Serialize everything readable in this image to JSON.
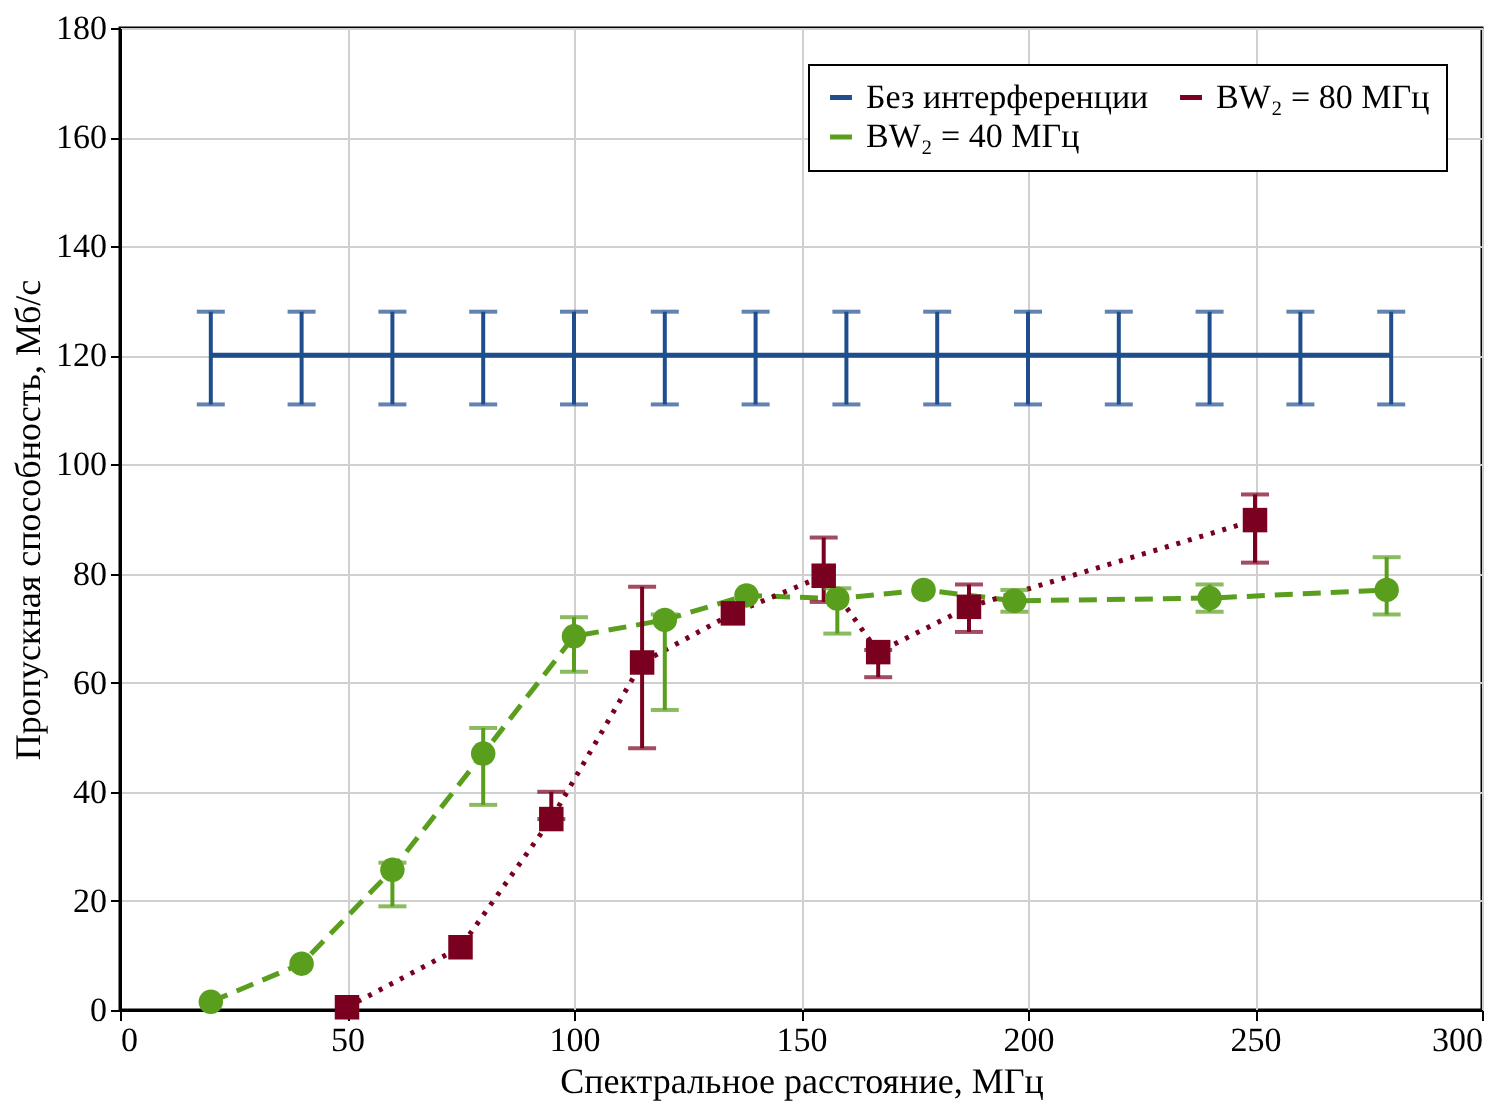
{
  "chart_data": {
    "type": "line",
    "xlabel": "Спектральное расстояние, МГц",
    "ylabel": "Пропускная способность, Мб/с",
    "xlim": [
      0,
      300
    ],
    "xticks": [
      0,
      50,
      100,
      150,
      200,
      250,
      300
    ],
    "ylim": [
      0,
      180
    ],
    "yticks": [
      0,
      20,
      40,
      60,
      80,
      100,
      120,
      140,
      160,
      180
    ],
    "grid": true,
    "legend": "top right",
    "series": [
      {
        "name": "Без интерференции",
        "color": "#1f4e8c",
        "marker": "none",
        "line_style": "solid",
        "x": [
          20,
          40,
          60,
          80,
          100,
          120,
          140,
          160,
          180,
          200,
          220,
          240,
          260,
          280
        ],
        "values": [
          120,
          120,
          120,
          120,
          120,
          120,
          120,
          120,
          120,
          120,
          120,
          120,
          120,
          120
        ],
        "errors": [
          [
            111,
            128
          ],
          [
            111,
            128
          ],
          [
            111,
            128
          ],
          [
            111,
            128
          ],
          [
            111,
            128
          ],
          [
            111,
            128
          ],
          [
            111,
            128
          ],
          [
            111,
            128
          ],
          [
            111,
            128
          ],
          [
            111,
            128
          ],
          [
            111,
            128
          ],
          [
            111,
            128
          ],
          [
            111,
            128
          ],
          [
            111,
            128
          ]
        ]
      },
      {
        "name": "BW₂ = 40 МГц",
        "color": "#5a9e1e",
        "marker": "circle",
        "line_style": "dashed",
        "x": [
          20,
          40,
          60,
          80,
          100,
          120,
          138,
          158,
          177,
          197,
          240,
          279
        ],
        "values": [
          1.5,
          8.5,
          25.7,
          47,
          68.5,
          71.5,
          76,
          75.4,
          77,
          75,
          75.5,
          77
        ],
        "errors": [
          null,
          null,
          [
            19,
            27
          ],
          [
            37.6,
            51.7
          ],
          [
            62,
            72
          ],
          [
            55,
            72.5
          ],
          null,
          [
            69,
            77.3
          ],
          null,
          [
            73,
            77
          ],
          [
            73,
            78
          ],
          [
            72.5,
            83
          ]
        ]
      },
      {
        "name": "BW₂ = 80 МГц",
        "color": "#7a0020",
        "marker": "square",
        "line_style": "dotted",
        "x": [
          50,
          75,
          95,
          115,
          135,
          155,
          167,
          187,
          250
        ],
        "values": [
          0.5,
          11.5,
          35,
          63.7,
          72.7,
          79.6,
          65.6,
          73.9,
          89.8
        ],
        "errors": [
          null,
          null,
          [
            35,
            40
          ],
          [
            48,
            77.6
          ],
          null,
          [
            74.8,
            86.6
          ],
          [
            61,
            66
          ],
          [
            69.3,
            78
          ],
          [
            82,
            94.5
          ]
        ]
      }
    ]
  }
}
